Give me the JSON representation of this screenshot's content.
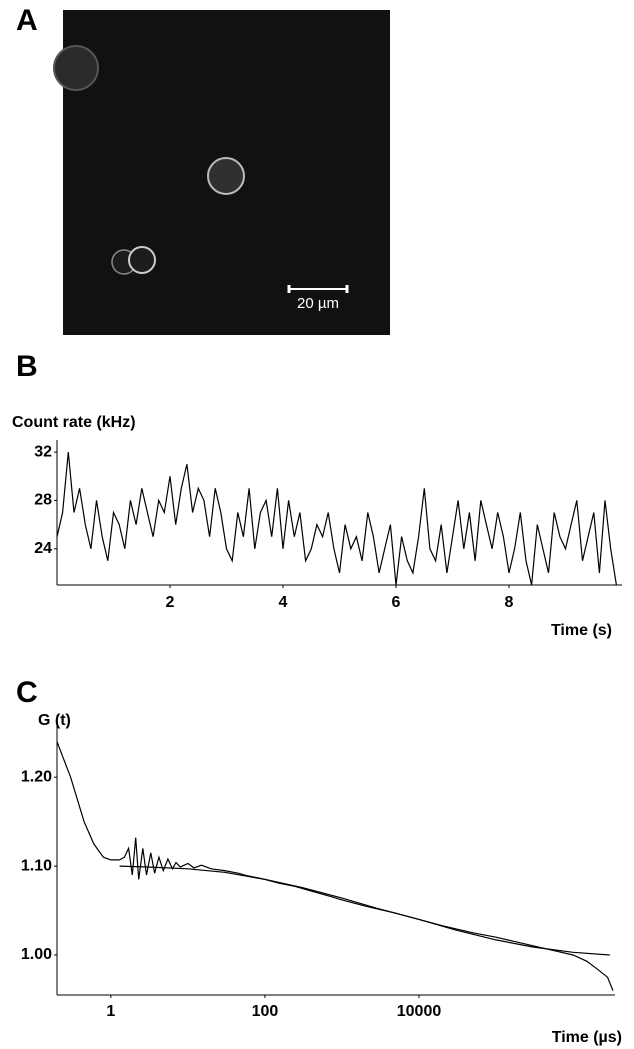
{
  "panel_labels": [
    "A",
    "B",
    "C"
  ],
  "image": {
    "scale_bar": "20 µm"
  },
  "chart_data": [
    {
      "type": "line",
      "y_label": "Count rate (kHz)",
      "x_label": "Time (s)",
      "x": [
        0.0,
        0.1,
        0.2,
        0.3,
        0.4,
        0.5,
        0.6,
        0.7,
        0.8,
        0.9,
        1.0,
        1.1,
        1.2,
        1.3,
        1.4,
        1.5,
        1.6,
        1.7,
        1.8,
        1.9,
        2.0,
        2.1,
        2.2,
        2.3,
        2.4,
        2.5,
        2.6,
        2.7,
        2.8,
        2.9,
        3.0,
        3.1,
        3.2,
        3.3,
        3.4,
        3.5,
        3.6,
        3.7,
        3.8,
        3.9,
        4.0,
        4.1,
        4.2,
        4.3,
        4.4,
        4.5,
        4.6,
        4.7,
        4.8,
        4.9,
        5.0,
        5.1,
        5.2,
        5.3,
        5.4,
        5.5,
        5.6,
        5.7,
        5.8,
        5.9,
        6.0,
        6.1,
        6.2,
        6.3,
        6.4,
        6.5,
        6.6,
        6.7,
        6.8,
        6.9,
        7.0,
        7.1,
        7.2,
        7.3,
        7.4,
        7.5,
        7.6,
        7.7,
        7.8,
        7.9,
        8.0,
        8.1,
        8.2,
        8.3,
        8.4,
        8.5,
        8.6,
        8.7,
        8.8,
        8.9,
        9.0,
        9.1,
        9.2,
        9.3,
        9.4,
        9.5,
        9.6,
        9.7,
        9.8,
        9.9
      ],
      "values": [
        25,
        27,
        32,
        27,
        29,
        26,
        24,
        28,
        25,
        23,
        27,
        26,
        24,
        28,
        26,
        29,
        27,
        25,
        28,
        27,
        30,
        26,
        29,
        31,
        27,
        29,
        28,
        25,
        29,
        27,
        24,
        23,
        27,
        25,
        29,
        24,
        27,
        28,
        25,
        29,
        24,
        28,
        25,
        27,
        23,
        24,
        26,
        25,
        27,
        24,
        22,
        26,
        24,
        25,
        23,
        27,
        25,
        22,
        24,
        26,
        21,
        25,
        23,
        22,
        25,
        29,
        24,
        23,
        26,
        22,
        25,
        28,
        24,
        27,
        23,
        28,
        26,
        24,
        27,
        25,
        22,
        24,
        27,
        23,
        21,
        26,
        24,
        22,
        27,
        25,
        24,
        26,
        28,
        23,
        25,
        27,
        22,
        28,
        24,
        21
      ],
      "color": "#000000",
      "xlim": [
        0,
        10
      ],
      "ylim": [
        21,
        33
      ],
      "xticks": [
        2,
        4,
        6,
        8
      ],
      "yticks": [
        24,
        28,
        32
      ],
      "grid": false
    },
    {
      "type": "line",
      "y_label": "G (t)",
      "x_label": "Time (µs)",
      "xscale": "log",
      "series": [
        {
          "color": "#000000",
          "x": [
            0.2,
            0.3,
            0.45,
            0.6,
            0.8,
            1.0,
            1.3,
            1.5,
            1.7,
            1.9,
            2.1,
            2.3,
            2.6,
            2.9,
            3.3,
            3.7,
            4.2,
            4.8,
            5.5,
            6.3,
            7,
            8,
            10,
            12,
            15,
            20,
            30,
            45,
            60,
            80,
            100,
            150,
            250,
            400,
            700,
            1000,
            2000,
            5000,
            10000,
            20000,
            50000,
            100000,
            200000,
            500000,
            1000000,
            1500000,
            2000000,
            2800000,
            3300000
          ],
          "values": [
            1.24,
            1.2,
            1.15,
            1.125,
            1.11,
            1.107,
            1.107,
            1.11,
            1.12,
            1.09,
            1.132,
            1.085,
            1.12,
            1.09,
            1.115,
            1.092,
            1.11,
            1.095,
            1.108,
            1.097,
            1.104,
            1.099,
            1.103,
            1.098,
            1.101,
            1.097,
            1.095,
            1.092,
            1.089,
            1.087,
            1.085,
            1.081,
            1.077,
            1.072,
            1.066,
            1.062,
            1.055,
            1.047,
            1.04,
            1.033,
            1.025,
            1.02,
            1.014,
            1.006,
            1.0,
            0.993,
            0.985,
            0.975,
            0.96
          ]
        },
        {
          "color": "#000000",
          "x": [
            1.3,
            3,
            10,
            30,
            100,
            300,
            1000,
            3000,
            10000,
            30000,
            100000,
            300000,
            1000000,
            3000000
          ],
          "values": [
            1.1,
            1.099,
            1.097,
            1.093,
            1.085,
            1.076,
            1.064,
            1.052,
            1.04,
            1.028,
            1.017,
            1.009,
            1.003,
            1.0
          ]
        }
      ],
      "xlim": [
        0.2,
        3500000
      ],
      "ylim": [
        0.955,
        1.27
      ],
      "xticks": [
        1,
        100,
        10000
      ],
      "yticks": [
        {
          "value": 1.2,
          "label": "1.20"
        },
        {
          "value": 1.1,
          "label": "1.10"
        },
        {
          "value": 1.0,
          "label": "1.00"
        }
      ],
      "grid": false
    }
  ]
}
